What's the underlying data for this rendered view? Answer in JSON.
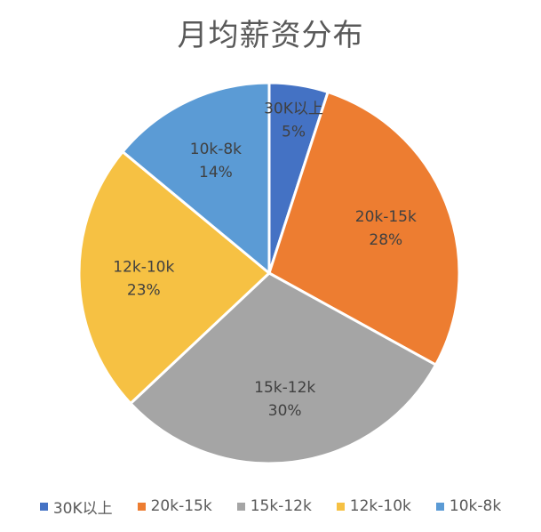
{
  "chart_data": {
    "type": "pie",
    "title": "月均薪资分布",
    "categories": [
      "30K以上",
      "20k-15k",
      "15k-12k",
      "12k-10k",
      "10k-8k"
    ],
    "values": [
      5,
      28,
      30,
      23,
      14
    ],
    "value_labels": [
      "5%",
      "28%",
      "30%",
      "23%",
      "14%"
    ],
    "colors": [
      "#4472C4",
      "#ED7D31",
      "#A5A5A5",
      "#F6C143",
      "#5B9BD5"
    ],
    "legend_position": "bottom",
    "start_angle": "top, clockwise"
  }
}
